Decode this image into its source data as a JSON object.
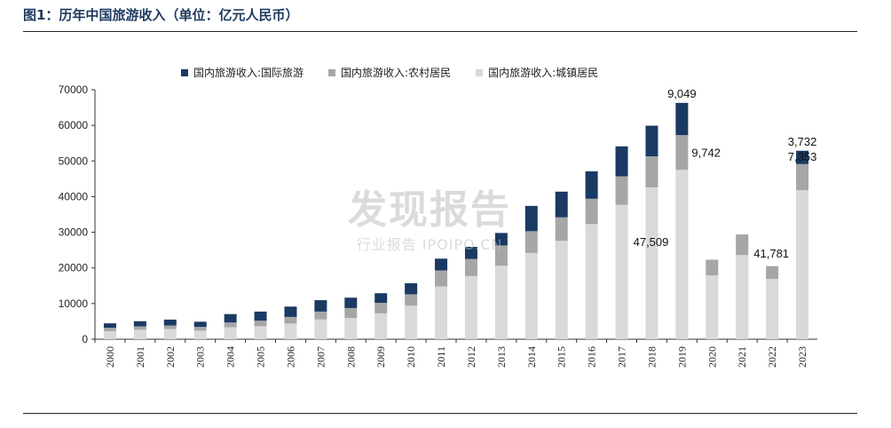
{
  "title": "图1：历年中国旅游收入（单位：亿元人民币）",
  "watermark": {
    "main": "发现报告",
    "sub": "行业报告 IPOIPO.CN"
  },
  "chart_data": {
    "type": "bar",
    "stacked": true,
    "categories": [
      "2000",
      "2001",
      "2002",
      "2003",
      "2004",
      "2005",
      "2006",
      "2007",
      "2008",
      "2009",
      "2010",
      "2011",
      "2012",
      "2013",
      "2014",
      "2015",
      "2016",
      "2017",
      "2018",
      "2019",
      "2020",
      "2021",
      "2022",
      "2023"
    ],
    "series": [
      {
        "name": "国内旅游收入:城镇居民",
        "color": "#d9d9d9",
        "values": [
          2250,
          2650,
          2850,
          2400,
          3350,
          3650,
          4400,
          5550,
          5950,
          7250,
          9400,
          14800,
          17700,
          20600,
          24200,
          27600,
          32300,
          37700,
          42600,
          47509,
          17900,
          23600,
          16900,
          41781
        ]
      },
      {
        "name": "国内旅游收入:农村居民",
        "color": "#a6a6a6",
        "values": [
          950,
          950,
          1000,
          1050,
          1350,
          1550,
          1850,
          2200,
          2800,
          2950,
          3200,
          4500,
          4800,
          5700,
          6100,
          6600,
          7100,
          8000,
          8700,
          9742,
          4400,
          5800,
          3600,
          7353
        ]
      },
      {
        "name": "国内旅游收入:国际旅游",
        "color": "#1a3a63",
        "values": [
          1250,
          1450,
          1650,
          1450,
          2350,
          2550,
          2900,
          3200,
          2900,
          2700,
          3100,
          3300,
          3400,
          3500,
          7100,
          7200,
          7700,
          8400,
          8600,
          9049,
          0,
          0,
          0,
          3732
        ]
      }
    ],
    "ylim": [
      0,
      70000
    ],
    "yticks": [
      "0",
      "10000",
      "20000",
      "30000",
      "40000",
      "50000",
      "60000",
      "70000"
    ],
    "annotations": [
      {
        "category": "2019",
        "series": "国际旅游",
        "text": "9,049",
        "pos": "above"
      },
      {
        "category": "2019",
        "series": "农村居民",
        "text": "9,742",
        "pos": "right"
      },
      {
        "category": "2019",
        "series": "城镇居民",
        "text": "47,509",
        "pos": "left"
      },
      {
        "category": "2023",
        "series": "国际旅游",
        "text": "3,732",
        "pos": "above"
      },
      {
        "category": "2023",
        "series": "农村居民",
        "text": "7,353",
        "pos": "above"
      },
      {
        "category": "2023",
        "series": "城镇居民",
        "text": "41,781",
        "pos": "left"
      }
    ],
    "legend_position": "top",
    "grid": false
  }
}
